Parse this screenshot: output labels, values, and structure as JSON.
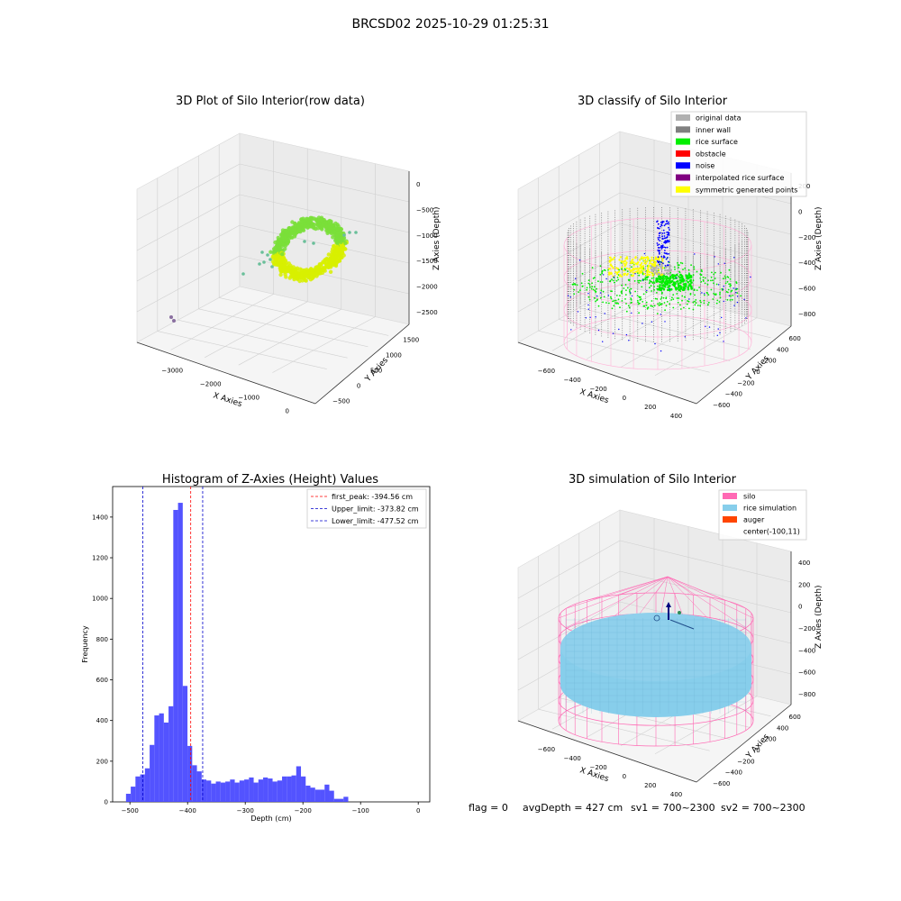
{
  "figure_title": "BRCSD02 2025-10-29 01:25:31",
  "footer": {
    "flag": "flag = 0",
    "avg_depth": "avgDepth = 427 cm",
    "sv1": "sv1 = 700~2300",
    "sv2": "sv2 = 700~2300"
  },
  "colors": {
    "original": "#b0b0b0",
    "inner_wall": "#808080",
    "rice_surface": "#00ee00",
    "obstacle": "#ff0000",
    "noise": "#0000ff",
    "interpolated": "#800080",
    "symmetric": "#ffff00",
    "silo": "#ff69b4",
    "rice_sim": "#87ceeb",
    "auger": "#ff4500",
    "hist_bar": "#4a4aff",
    "peak_line": "#ff0000",
    "limit_line": "#0000cc"
  },
  "chart_data": [
    {
      "type": "scatter",
      "subtype": "3d",
      "title": "3D Plot of Silo Interior(row data)",
      "xlabel": "X Axies",
      "ylabel": "Y Axies",
      "zlabel": "Z Axies (Depth)",
      "xticks": [
        "−3000",
        "−2000",
        "−1000",
        "0"
      ],
      "yticks": [
        "−500",
        "0",
        "500",
        "1000",
        "1500"
      ],
      "zticks": [
        "0",
        "−500",
        "−1000",
        "−1500",
        "−2000",
        "−2500"
      ],
      "grid": true
    },
    {
      "type": "scatter",
      "subtype": "3d",
      "title": "3D classify of Silo Interior",
      "xlabel": "X Axies",
      "ylabel": "Y Axies",
      "zlabel": "Z Axies (Depth)",
      "xticks": [
        "−600",
        "−400",
        "−200",
        "0",
        "200",
        "400"
      ],
      "yticks": [
        "−600",
        "−400",
        "−200",
        "0",
        "200",
        "400",
        "600"
      ],
      "zticks": [
        "200",
        "0",
        "−200",
        "−400",
        "−600",
        "−800"
      ],
      "legend": [
        "original data",
        "inner wall",
        "rice surface",
        "obstacle",
        "noise",
        "interpolated rice surface",
        "symmetric generated points"
      ],
      "legend_position": "top-right",
      "grid": true
    },
    {
      "type": "bar",
      "subtype": "histogram",
      "title": "Histogram of Z-Axies (Height) Values",
      "xlabel": "Depth (cm)",
      "ylabel": "Frequency",
      "xlim": [
        -530,
        20
      ],
      "ylim": [
        0,
        1550
      ],
      "xticks": [
        -500,
        -400,
        -300,
        -200,
        -100,
        0
      ],
      "xtick_labels": [
        "−500",
        "−400",
        "−300",
        "−200",
        "−100",
        "0"
      ],
      "yticks": [
        0,
        200,
        400,
        600,
        800,
        1000,
        1200,
        1400
      ],
      "bin_start": -515,
      "bin_width": 8.2,
      "values": [
        0,
        40,
        75,
        125,
        135,
        165,
        280,
        425,
        435,
        390,
        470,
        1435,
        1470,
        570,
        275,
        180,
        150,
        110,
        105,
        90,
        100,
        95,
        100,
        110,
        95,
        105,
        110,
        120,
        95,
        110,
        120,
        115,
        100,
        105,
        125,
        125,
        130,
        175,
        125,
        80,
        70,
        60,
        60,
        85,
        55,
        15,
        15,
        25
      ],
      "vlines": [
        {
          "name": "first_peak: -394.56 cm",
          "x": -394.56,
          "color": "#ff0000"
        },
        {
          "name": "Upper_limit: -373.82 cm",
          "x": -373.82,
          "color": "#0000cc"
        },
        {
          "name": "Lower_limit: -477.52 cm",
          "x": -477.52,
          "color": "#0000cc"
        }
      ],
      "legend_position": "top-right"
    },
    {
      "type": "scatter",
      "subtype": "3d",
      "title": "3D simulation of Silo Interior",
      "xlabel": "X Axies",
      "ylabel": "Y Axies",
      "zlabel": "Z Axies (Depth)",
      "xticks": [
        "−600",
        "−400",
        "−200",
        "0",
        "200",
        "400"
      ],
      "yticks": [
        "−600",
        "−400",
        "−200",
        "0",
        "200",
        "400",
        "600"
      ],
      "zticks": [
        "400",
        "200",
        "0",
        "−200",
        "−400",
        "−600",
        "−800"
      ],
      "legend": [
        "silo",
        "rice simulation",
        "auger",
        "center(-100,11)"
      ],
      "legend_position": "top-right",
      "grid": true
    }
  ]
}
